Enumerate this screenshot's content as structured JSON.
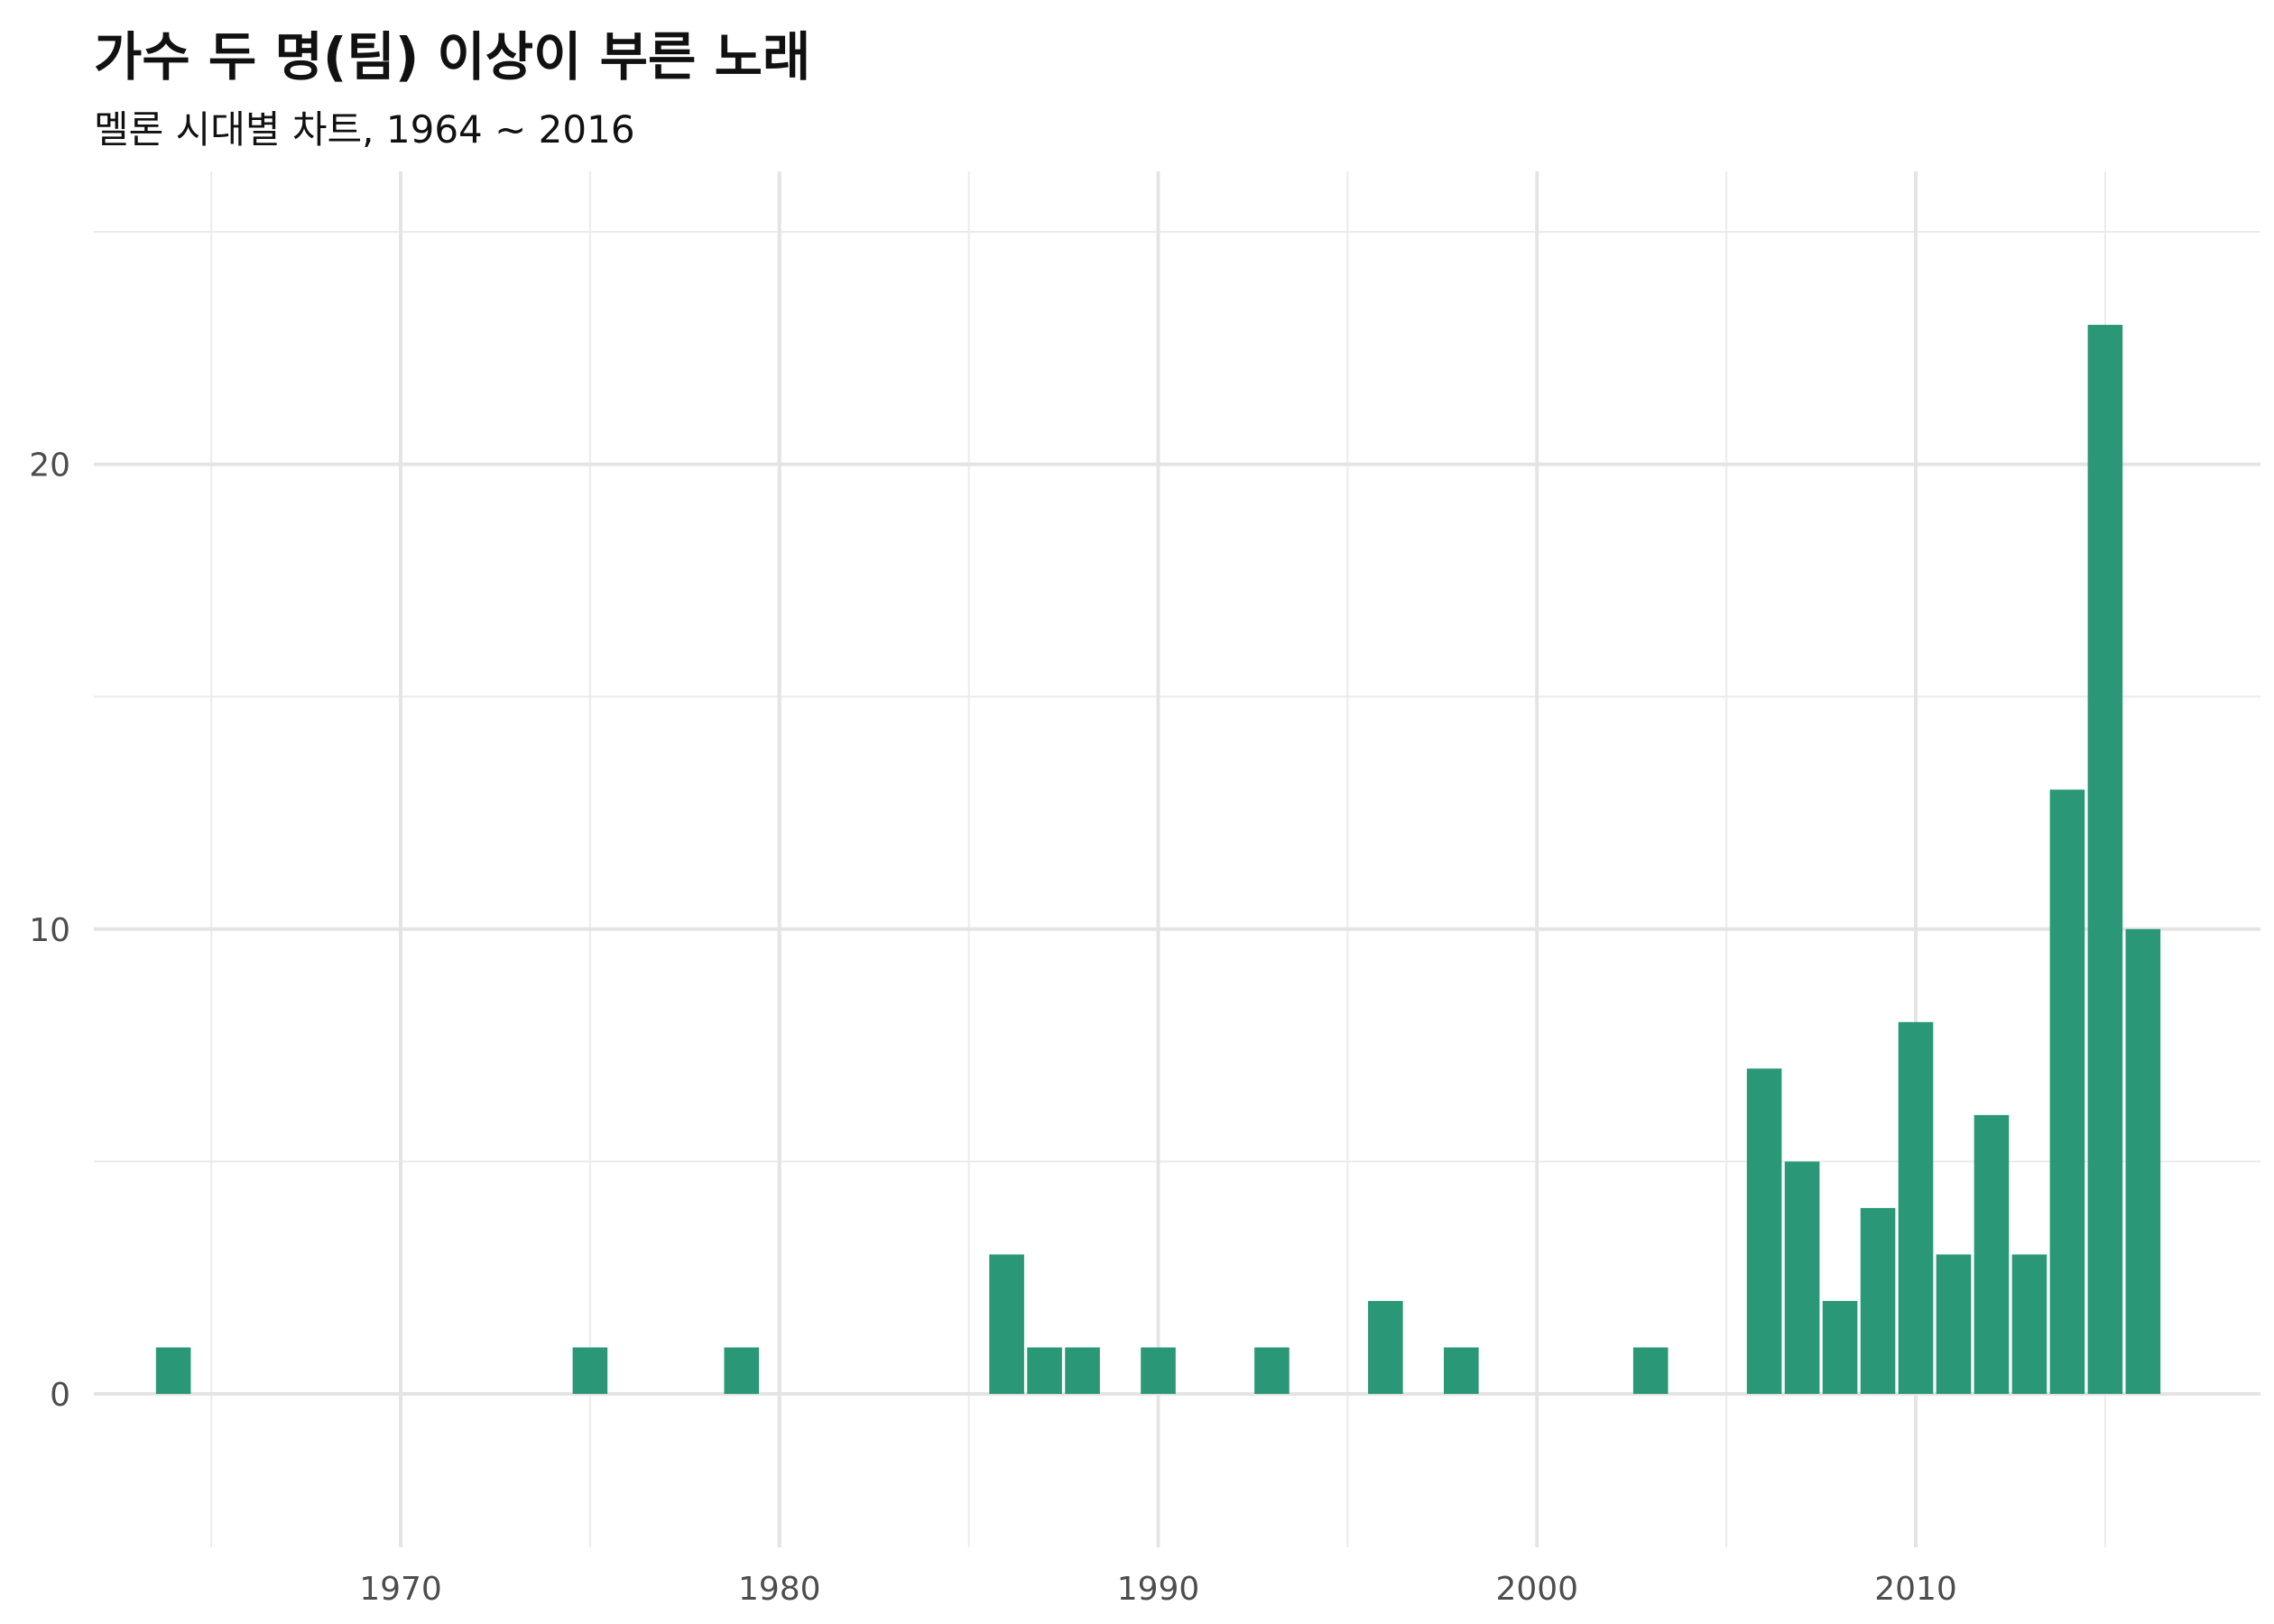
{
  "chart_data": {
    "type": "bar",
    "title": "가수 두 명(팀) 이상이 부른 노래",
    "subtitle": "멜론 시대별 차트, 1964 ~ 2016",
    "xlabel": "",
    "ylabel": "",
    "x": [
      1964,
      1975,
      1979,
      1986,
      1987,
      1988,
      1990,
      1993,
      1996,
      1998,
      2003,
      2006,
      2007,
      2008,
      2009,
      2010,
      2011,
      2012,
      2013,
      2014,
      2015,
      2016
    ],
    "values": [
      1,
      1,
      1,
      3,
      1,
      1,
      1,
      1,
      2,
      1,
      1,
      7,
      5,
      2,
      4,
      8,
      3,
      6,
      3,
      13,
      23,
      10
    ],
    "xlim": [
      1961.9,
      2019.1
    ],
    "ylim": [
      -3.3,
      26.3
    ],
    "xticks": [
      "1970",
      "1980",
      "1990",
      "2000",
      "2010"
    ],
    "yticks": [
      "0",
      "10",
      "20"
    ],
    "grid": true,
    "legend": "none",
    "bar_color": "#2a9876"
  }
}
